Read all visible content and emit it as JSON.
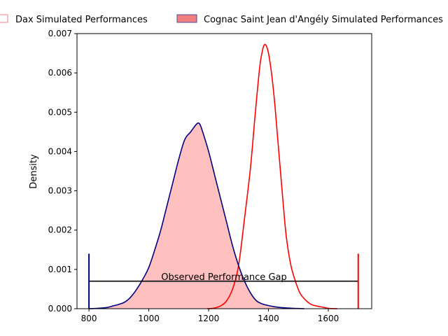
{
  "chart_data": {
    "type": "area",
    "title": "",
    "xlabel": "",
    "ylabel": "Density",
    "xlim": [
      760,
      1745
    ],
    "ylim": [
      0,
      0.007
    ],
    "xticks": [
      800,
      1000,
      1200,
      1400,
      1600
    ],
    "yticks": [
      0.0,
      0.001,
      0.002,
      0.003,
      0.004,
      0.005,
      0.006,
      0.007
    ],
    "ytick_labels": [
      "0.000",
      "0.001",
      "0.002",
      "0.003",
      "0.004",
      "0.005",
      "0.006",
      "0.007"
    ],
    "grid": false,
    "legend_placement": "top-center, outside above axes",
    "legend": [
      {
        "label": "Dax Simulated Performances",
        "style": "outline",
        "color": "#f08080"
      },
      {
        "label": "Cognac Saint Jean d'Angély Simulated Performances",
        "style": "filled",
        "color": "#f08080",
        "edge": "#4b4b9b"
      }
    ],
    "series": [
      {
        "name": "Dax Simulated Performances",
        "line_color": "#ff0000",
        "fill_color": "#ffc0c0",
        "filled": false,
        "x": [
          1195,
          1215,
          1240,
          1260,
          1280,
          1300,
          1320,
          1340,
          1355,
          1370,
          1378,
          1385,
          1392,
          1400,
          1410,
          1420,
          1430,
          1440,
          1450,
          1460,
          1475,
          1490,
          1505,
          1520,
          1540,
          1560,
          1580,
          1600,
          1615,
          1630
        ],
        "y": [
          0,
          1e-05,
          7e-05,
          0.0002,
          0.0005,
          0.0011,
          0.0023,
          0.0036,
          0.0049,
          0.0061,
          0.0065,
          0.0067,
          0.0067,
          0.0065,
          0.006,
          0.0053,
          0.0044,
          0.0035,
          0.0026,
          0.0018,
          0.0011,
          0.0007,
          0.0004,
          0.00025,
          0.00012,
          7e-05,
          4e-05,
          1e-05,
          3e-06,
          0
        ]
      },
      {
        "name": "Cognac Saint Jean d'Angély Simulated Performances",
        "line_color": "#000080",
        "fill_color": "#ffc0c0",
        "filled": true,
        "x": [
          800,
          830,
          860,
          880,
          900,
          920,
          940,
          960,
          980,
          1000,
          1020,
          1040,
          1060,
          1080,
          1100,
          1120,
          1140,
          1160,
          1170,
          1180,
          1200,
          1220,
          1240,
          1260,
          1280,
          1300,
          1320,
          1340,
          1360,
          1380,
          1400,
          1420,
          1440,
          1460,
          1480,
          1500,
          1520
        ],
        "y": [
          0,
          1e-05,
          3e-05,
          7e-05,
          0.00011,
          0.00017,
          0.0003,
          0.0005,
          0.00075,
          0.00105,
          0.0015,
          0.002,
          0.0026,
          0.0032,
          0.0038,
          0.0043,
          0.0045,
          0.0047,
          0.0047,
          0.0045,
          0.004,
          0.0034,
          0.0028,
          0.0022,
          0.0016,
          0.0011,
          0.0007,
          0.0004,
          0.0002,
          0.00012,
          8e-05,
          5e-05,
          3e-05,
          2e-05,
          1e-05,
          5e-06,
          0
        ]
      }
    ],
    "annotation": {
      "label": "Observed Performance Gap",
      "hline_y": 0.0007,
      "x_start": 800,
      "x_end": 1700,
      "left_marker": {
        "x": 800,
        "y_top": 0.0014,
        "color": "#000080"
      },
      "right_marker": {
        "x": 1700,
        "y_top": 0.0014,
        "color": "#ff0000"
      },
      "color": "#000000"
    }
  }
}
